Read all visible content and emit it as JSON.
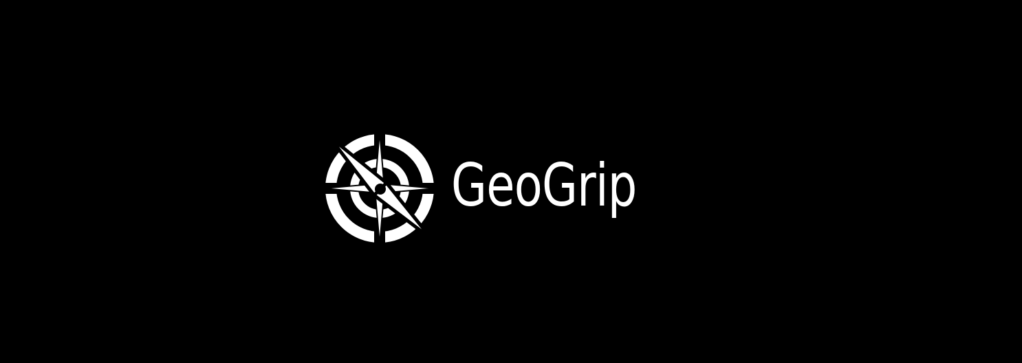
{
  "brand": {
    "name": "GeoGrip",
    "icon": "compass-icon",
    "foreground_color": "#ffffff",
    "background_color": "#000000"
  }
}
